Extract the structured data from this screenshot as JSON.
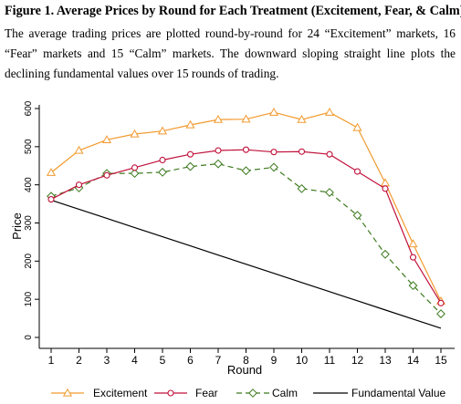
{
  "figure": {
    "title": "Figure 1. Average Prices by Round for Each Treatment (Excitement, Fear, & Calm)",
    "caption": "The average trading prices are plotted round-by-round for 24 “Excitement” markets, 16 “Fear” markets and 15 “Calm” markets. The downward sloping straight line plots the declining fundamental values over 15 rounds of trading."
  },
  "chart_data": {
    "type": "line",
    "xlabel": "Round",
    "ylabel": "Price",
    "x": [
      1,
      2,
      3,
      4,
      5,
      6,
      7,
      8,
      9,
      10,
      11,
      12,
      13,
      14,
      15
    ],
    "xlim": [
      1,
      15
    ],
    "ylim": [
      0,
      600
    ],
    "yticks": [
      0,
      100,
      200,
      300,
      400,
      500,
      600
    ],
    "grid": false,
    "legend_position": "bottom",
    "series": [
      {
        "name": "Excitement",
        "color": "#f29a2e",
        "marker": "triangle",
        "dash": "solid",
        "values": [
          432,
          490,
          518,
          533,
          541,
          557,
          571,
          572,
          590,
          571,
          590,
          550,
          405,
          245,
          95
        ]
      },
      {
        "name": "Fear",
        "color": "#c0103a",
        "marker": "circle",
        "dash": "solid",
        "values": [
          362,
          400,
          425,
          445,
          465,
          480,
          490,
          492,
          486,
          487,
          480,
          435,
          390,
          210,
          90
        ]
      },
      {
        "name": "Calm",
        "color": "#3d7a1e",
        "marker": "diamond",
        "dash": "dashed",
        "values": [
          370,
          392,
          430,
          430,
          433,
          448,
          455,
          437,
          446,
          390,
          380,
          320,
          218,
          136,
          62
        ]
      },
      {
        "name": "Fundamental Value",
        "color": "#000000",
        "marker": "none",
        "dash": "solid",
        "values": [
          360,
          336,
          312,
          288,
          264,
          240,
          216,
          192,
          168,
          144,
          120,
          96,
          72,
          48,
          24
        ]
      }
    ]
  }
}
